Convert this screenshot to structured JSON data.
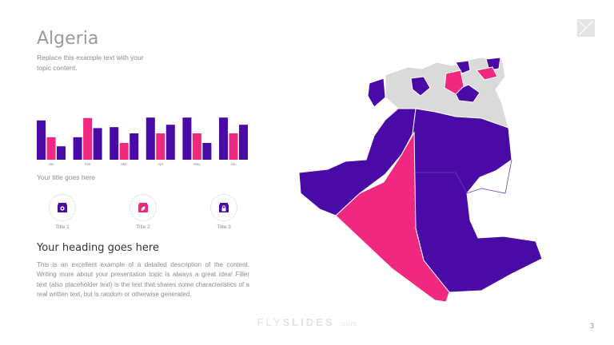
{
  "slide": {
    "title": "Algeria",
    "subtitle": "Replace this example text with your topic content.",
    "chart_title": "Your title goes here",
    "icons": [
      {
        "label": "Title 1",
        "icon": "building-icon"
      },
      {
        "label": "Title 2",
        "icon": "building-leaf-icon"
      },
      {
        "label": "Title 3",
        "icon": "building-lock-icon"
      }
    ],
    "heading": "Your heading goes here",
    "body": "This is an excellent example of a detailed description of the content. Writing more about your presentation topic is always a great idea! Filler text (also placeholder text) is the text that shares some characteristics of a real written text, but is random or otherwise generated.",
    "footer": {
      "prefix": "FLY",
      "brand": "SLIDES",
      "tld": ".com"
    },
    "page_number": "3"
  },
  "colors": {
    "purple": "#4a0aa6",
    "pink": "#f0287f",
    "grey": "#dadada"
  },
  "chart_data": {
    "type": "bar",
    "categories": [
      "Jan",
      "Feb",
      "Mar",
      "Apr",
      "May",
      "Jun"
    ],
    "series": [
      {
        "values": [
          82,
          47,
          68,
          88,
          88,
          88
        ]
      },
      {
        "values": [
          47,
          87,
          35,
          55,
          55,
          55
        ]
      },
      {
        "values": [
          28,
          66,
          55,
          73,
          35,
          73
        ]
      }
    ],
    "ylim": [
      0,
      100
    ],
    "grid": false,
    "colors": [
      "#4a0aa6",
      "#f0287f",
      "#4a0aa6"
    ]
  }
}
